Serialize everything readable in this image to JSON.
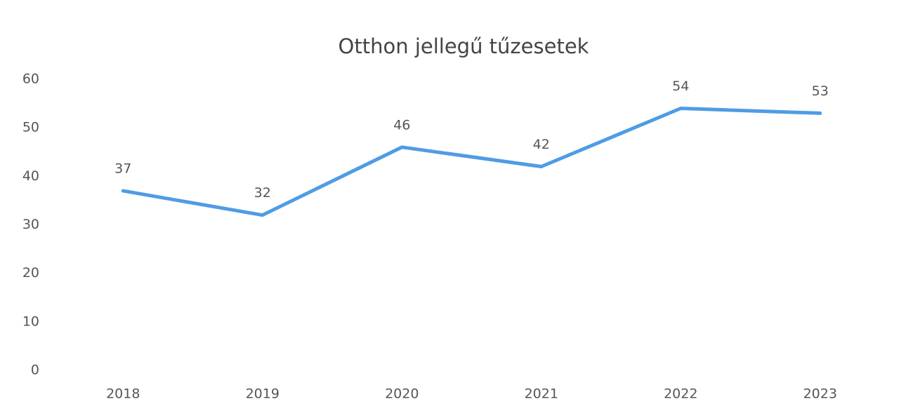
{
  "chart_data": {
    "type": "line",
    "title": "Otthon jellegű tűzesetek",
    "categories": [
      "2018",
      "2019",
      "2020",
      "2021",
      "2022",
      "2023"
    ],
    "values": [
      37,
      32,
      46,
      42,
      54,
      53
    ],
    "color": "#4f9ce3",
    "ylim": [
      0,
      60
    ],
    "yticks": [
      0,
      10,
      20,
      30,
      40,
      50,
      60
    ],
    "grid": false
  }
}
